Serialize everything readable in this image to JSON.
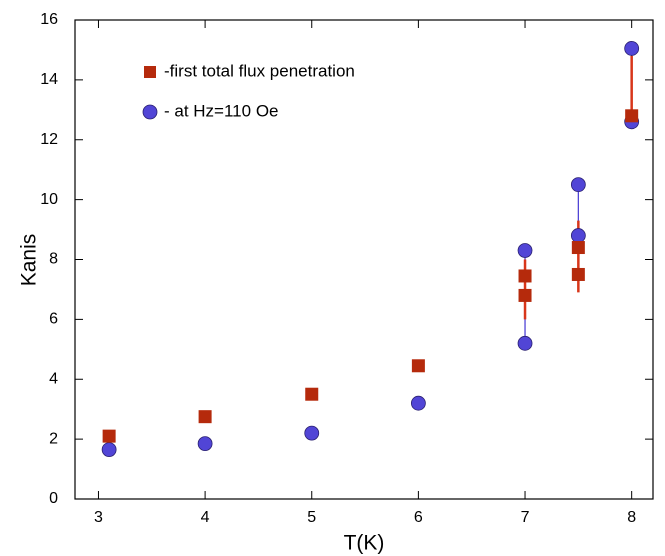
{
  "chart_data": {
    "type": "scatter",
    "x_label": "T(K)",
    "y_label": "Kanis",
    "xlim": [
      2.78,
      8.2
    ],
    "ylim": [
      0,
      16
    ],
    "xticks": [
      3,
      4,
      5,
      6,
      7,
      8
    ],
    "yticks": [
      0,
      2,
      4,
      6,
      8,
      10,
      12,
      14,
      16
    ],
    "legend": "top-left",
    "series": [
      {
        "name": "-first total flux penetration",
        "color": "#b52a0c",
        "marker": "square",
        "x": [
          3.1,
          4,
          5,
          6,
          7,
          7,
          7.5,
          7.5,
          8
        ],
        "values": [
          2.1,
          2.75,
          3.5,
          4.45,
          7.45,
          6.8,
          8.4,
          7.5,
          12.8
        ]
      },
      {
        "name": "- at Hz=110 Oe",
        "color": "#5145d6",
        "marker": "circle",
        "connect_same_x": true,
        "x": [
          3.1,
          4,
          5,
          6,
          7,
          7,
          7.5,
          7.5,
          8,
          8
        ],
        "values": [
          1.65,
          1.85,
          2.2,
          3.2,
          8.3,
          5.2,
          10.5,
          8.8,
          15.05,
          12.6
        ]
      }
    ],
    "error_bars": [
      {
        "x": 7,
        "low": 6.0,
        "high": 8.0,
        "color": "#d8361a"
      },
      {
        "x": 7.5,
        "low": 6.9,
        "high": 9.3,
        "color": "#d8361a"
      },
      {
        "x": 8,
        "low": 12.8,
        "high": 14.8,
        "color": "#d8361a"
      }
    ]
  }
}
